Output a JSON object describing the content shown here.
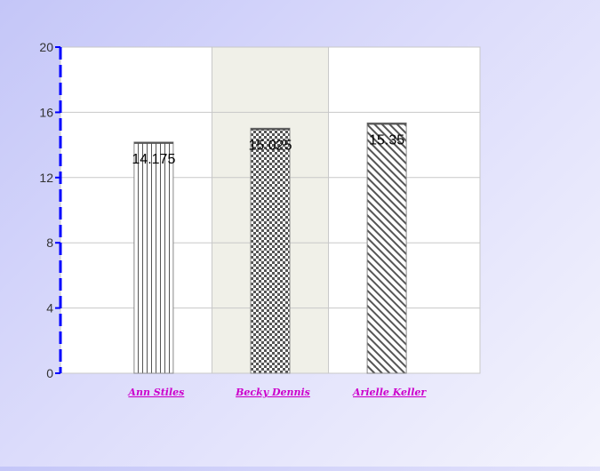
{
  "chart_data": {
    "type": "bar",
    "categories": [
      "Ann Stiles",
      "Becky Dennis",
      "Arielle Keller"
    ],
    "values": [
      14.175,
      15.025,
      15.35
    ],
    "data_labels": [
      "14.175",
      "15.025",
      "15.35"
    ],
    "y_ticks": [
      "0",
      "4",
      "8",
      "12",
      "16",
      "20"
    ],
    "ylim": [
      0,
      20
    ],
    "grid": true,
    "patterns": [
      "vertical-stripes",
      "checkerboard",
      "diagonal-stripes"
    ],
    "colors": {
      "plot_band_light": "#ffffff",
      "plot_band_dark": "#f0f0e8",
      "grid": "#c8c8c8",
      "axis": "#0000ff",
      "bar_pattern": "#555555",
      "category_label": "#cc00cc"
    }
  }
}
